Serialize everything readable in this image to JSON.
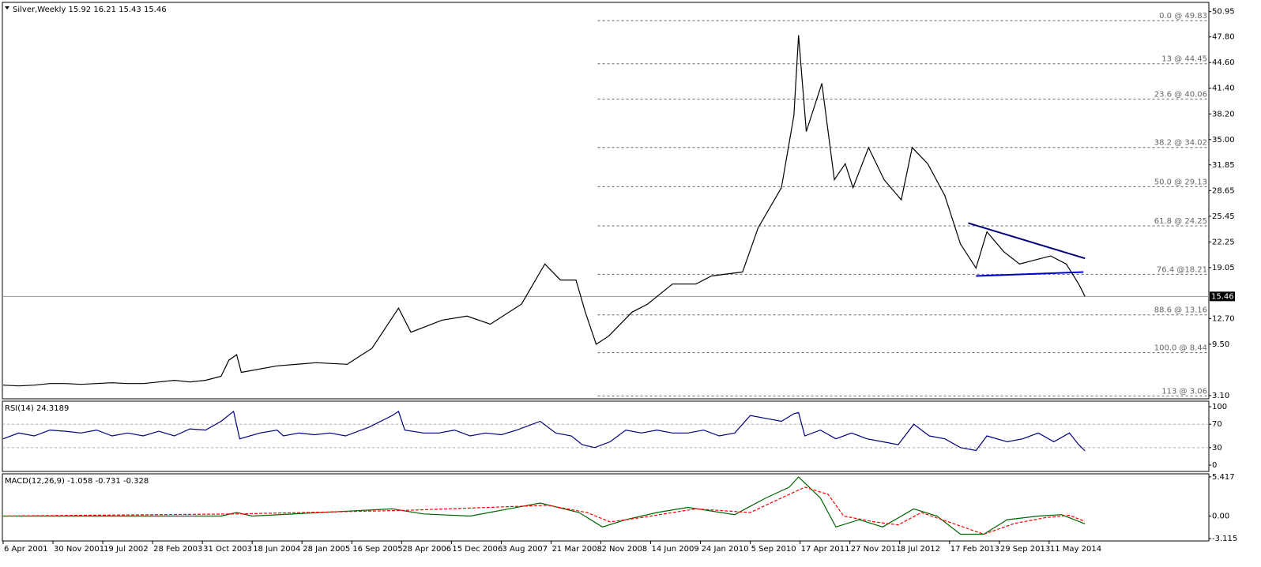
{
  "chart_data": [
    {
      "type": "line",
      "title": "Silver,Weekly  15.92 16.21 15.43 15.46",
      "xlim": [
        -0.5,
        774.6
      ],
      "xticks": [
        {
          "value": 0,
          "label": "6 Apr 2001"
        },
        {
          "value": 32,
          "label": "30 Nov 2001"
        },
        {
          "value": 64,
          "label": "19 Jul 2002"
        },
        {
          "value": 96,
          "label": "28 Feb 2003"
        },
        {
          "value": 128,
          "label": "31 Oct 2003"
        },
        {
          "value": 160,
          "label": "18 Jun 2004"
        },
        {
          "value": 192,
          "label": "28 Jan 2005"
        },
        {
          "value": 224,
          "label": "16 Sep 2005"
        },
        {
          "value": 256,
          "label": "28 Apr 2006"
        },
        {
          "value": 288,
          "label": "15 Dec 2006"
        },
        {
          "value": 320,
          "label": "3 Aug 2007"
        },
        {
          "value": 352,
          "label": "21 Mar 2008"
        },
        {
          "value": 384,
          "label": "2 Nov 2008"
        },
        {
          "value": 416,
          "label": "14 Jun 2009"
        },
        {
          "value": 448,
          "label": "24 Jan 2010"
        },
        {
          "value": 480,
          "label": "5 Sep 2010"
        },
        {
          "value": 512,
          "label": "17 Apr 2011"
        },
        {
          "value": 544,
          "label": "27 Nov 2011"
        },
        {
          "value": 576,
          "label": "8 Jul 2012"
        },
        {
          "value": 608,
          "label": "17 Feb 2013"
        },
        {
          "value": 640,
          "label": "29 Sep 2013"
        },
        {
          "value": 672,
          "label": "11 May 2014"
        }
      ],
      "ylim": [
        2.7,
        52.1
      ],
      "yticks": [
        50.95,
        {
          "value": 47.8,
          "label": "47.80"
        },
        {
          "value": 44.6,
          "label": "44.60"
        },
        {
          "value": 41.4,
          "label": "41.40"
        },
        {
          "value": 38.2,
          "label": "38.20"
        },
        {
          "value": 35,
          "label": "35.00"
        },
        31.85,
        28.65,
        25.45,
        22.25,
        19.05,
        {
          "value": 12.7,
          "label": "12.70"
        },
        {
          "value": 9.5,
          "label": "9.50"
        },
        {
          "value": 3.1,
          "label": "3.10"
        }
      ],
      "last": 15.46,
      "series": [
        {
          "color": "#000000",
          "x": [
            0,
            10,
            20,
            30,
            40,
            50,
            60,
            70,
            80,
            90,
            100,
            110,
            120,
            130,
            140,
            145,
            150,
            153,
            176,
            201,
            221,
            237,
            254,
            262,
            282,
            298,
            313,
            333,
            348,
            358,
            368,
            374,
            381,
            389,
            404,
            414,
            430,
            445,
            455,
            475,
            485,
            500,
            508,
            511,
            516,
            526,
            534,
            541,
            546,
            556,
            566,
            577,
            584,
            594,
            605,
            615,
            625,
            632,
            643,
            653,
            663,
            673,
            683,
            691,
            695
          ],
          "values": [
            4.4,
            4.3,
            4.4,
            4.6,
            4.6,
            4.5,
            4.6,
            4.7,
            4.6,
            4.6,
            4.8,
            5.0,
            4.8,
            5.0,
            5.5,
            7.5,
            8.2,
            6.0,
            6.8,
            7.2,
            7.0,
            9.0,
            14.0,
            11.0,
            12.5,
            13.0,
            12.0,
            14.5,
            19.5,
            17.5,
            17.5,
            13.5,
            9.5,
            10.5,
            13.5,
            14.5,
            17.0,
            17.0,
            18.0,
            18.5,
            24,
            29,
            38,
            48,
            36,
            42,
            30,
            32,
            29,
            34,
            30,
            27.5,
            34,
            32,
            28,
            22,
            19,
            23.5,
            21,
            19.5,
            20.0,
            20.5,
            19.5,
            17,
            15.46
          ]
        }
      ],
      "fib_start": 382,
      "fib_levels": [
        {
          "value": 49.83,
          "label": "0.0 @ 49.83"
        },
        {
          "value": 44.45,
          "label": "13 @ 44.45"
        },
        {
          "value": 40.06,
          "label": "23.6 @ 40.06"
        },
        {
          "value": 34.02,
          "label": "38.2 @ 34.02"
        },
        {
          "value": 29.13,
          "label": "50.0 @ 29.13"
        },
        {
          "value": 24.25,
          "label": "61.8 @ 24.25"
        },
        {
          "value": 18.21,
          "label": "76.4 @18.21"
        },
        {
          "value": 13.16,
          "label": "88.6 @ 13.16"
        },
        {
          "value": 8.44,
          "label": "100.0 @ 8.44"
        },
        {
          "value": 3.06,
          "label": "113 @ 3.06"
        }
      ],
      "trendlines": [
        {
          "color": "#000080",
          "x": [
            620,
            695
          ],
          "values": [
            24.6,
            20.2
          ]
        },
        {
          "color": "#0000cc",
          "x": [
            625,
            694
          ],
          "values": [
            18.0,
            18.5
          ]
        }
      ]
    },
    {
      "type": "line",
      "title": "RSI(14) 24.3189",
      "ylim": [
        -10.8,
        109.5
      ],
      "yticks": [
        100,
        70,
        30,
        0
      ],
      "levels": [
        70,
        30
      ],
      "series": [
        {
          "color": "#000080",
          "x": [
            0,
            10,
            20,
            30,
            40,
            50,
            60,
            70,
            80,
            90,
            100,
            110,
            120,
            130,
            140,
            148,
            152,
            165,
            176,
            180,
            190,
            200,
            210,
            220,
            235,
            250,
            254,
            258,
            270,
            280,
            290,
            300,
            310,
            320,
            330,
            345,
            355,
            365,
            372,
            380,
            390,
            400,
            410,
            420,
            430,
            440,
            450,
            460,
            470,
            480,
            490,
            500,
            508,
            511,
            515,
            525,
            535,
            545,
            555,
            565,
            575,
            585,
            595,
            605,
            615,
            625,
            632,
            645,
            655,
            665,
            675,
            685,
            691,
            695
          ],
          "values": [
            45,
            55,
            50,
            60,
            58,
            55,
            60,
            50,
            55,
            50,
            58,
            50,
            62,
            60,
            75,
            92,
            45,
            55,
            60,
            50,
            55,
            52,
            55,
            50,
            65,
            85,
            92,
            60,
            55,
            55,
            60,
            50,
            55,
            52,
            60,
            75,
            55,
            50,
            35,
            30,
            40,
            60,
            55,
            60,
            55,
            55,
            60,
            50,
            55,
            85,
            80,
            75,
            88,
            90,
            50,
            60,
            45,
            55,
            45,
            40,
            35,
            70,
            50,
            45,
            30,
            25,
            50,
            40,
            45,
            55,
            40,
            55,
            35,
            24.3
          ]
        }
      ]
    },
    {
      "type": "line",
      "title": "MACD(12,26,9) -1.058 -0.731 -0.328",
      "ylim": [
        -3.43,
        5.84
      ],
      "yticks": [
        5.417,
        {
          "value": 0,
          "label": "0.00"
        },
        -3.115
      ],
      "series": [
        {
          "color": "#006400",
          "x": [
            0,
            140,
            150,
            160,
            250,
            270,
            300,
            345,
            370,
            385,
            400,
            420,
            440,
            470,
            490,
            505,
            511,
            525,
            535,
            550,
            565,
            585,
            600,
            615,
            630,
            645,
            665,
            680,
            695
          ],
          "values": [
            0,
            0,
            0.5,
            0,
            1.0,
            0.3,
            0,
            1.8,
            0.5,
            -1.5,
            -0.5,
            0.5,
            1.2,
            0.2,
            2.5,
            4,
            5.4,
            2.5,
            -1.5,
            -0.5,
            -1.5,
            1.0,
            0,
            -2.5,
            -2.5,
            -0.5,
            0,
            0.2,
            -1.06
          ]
        },
        {
          "color": "#ff0000",
          "x": [
            0,
            150,
            260,
            350,
            375,
            390,
            410,
            445,
            480,
            500,
            515,
            530,
            540,
            560,
            575,
            590,
            610,
            630,
            650,
            670,
            685,
            695
          ],
          "values": [
            0,
            0.3,
            0.8,
            1.5,
            0.5,
            -0.8,
            -0.2,
            1.0,
            0.5,
            2.5,
            4.0,
            3.0,
            0,
            -0.8,
            -1.2,
            0.5,
            -1.0,
            -2.5,
            -1.0,
            -0.2,
            0.1,
            -0.73
          ]
        }
      ]
    }
  ]
}
